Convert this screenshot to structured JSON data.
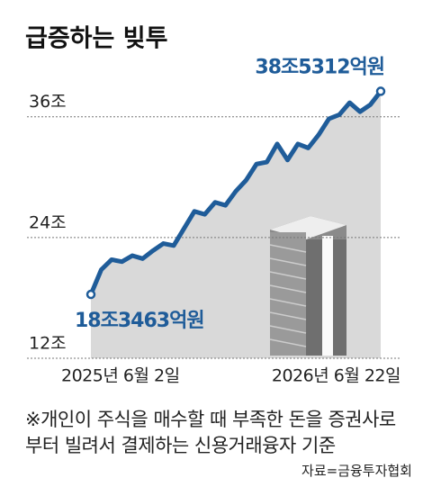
{
  "chart_data": {
    "type": "line",
    "title": "급증하는 빚투",
    "categories": [
      "2025년 6월 2일",
      null,
      null,
      null,
      null,
      null,
      null,
      null,
      null,
      null,
      null,
      null,
      null,
      null,
      null,
      null,
      null,
      null,
      null,
      null,
      null,
      null,
      null,
      null,
      null,
      null,
      null,
      null,
      "2026년 6월 22일"
    ],
    "values": [
      18.3463,
      20.8,
      21.8,
      21.6,
      22.2,
      21.9,
      22.7,
      23.4,
      23.2,
      24.9,
      26.6,
      26.3,
      27.5,
      27.2,
      28.6,
      29.7,
      31.3,
      31.5,
      33.3,
      31.7,
      33.3,
      32.9,
      34.2,
      35.8,
      36.2,
      37.4,
      36.5,
      37.2,
      38.5312
    ],
    "value_labels": [
      "18조3463억원",
      null,
      null,
      null,
      null,
      null,
      null,
      null,
      null,
      null,
      null,
      null,
      null,
      null,
      null,
      null,
      null,
      null,
      null,
      null,
      null,
      null,
      null,
      null,
      null,
      null,
      null,
      null,
      "38조5312억원"
    ],
    "color": "#1f5c99",
    "area_color": "#d9d9d9",
    "ylim": [
      12,
      40
    ],
    "yticks": [
      {
        "value": 12,
        "label": "12조"
      },
      {
        "value": 24,
        "label": "24조"
      },
      {
        "value": 36,
        "label": "36조"
      }
    ],
    "grid": true,
    "note": "※개인이 주식을 매수할 때 부족한 돈을 증권사로부터 빌려서 결제하는 신용거래융자 기준",
    "source": "자료=금융투자협회"
  }
}
